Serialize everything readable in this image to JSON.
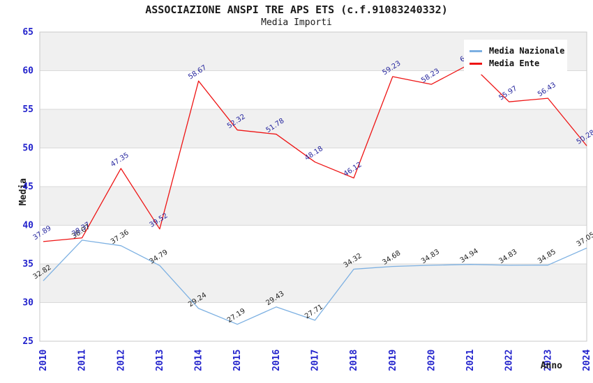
{
  "title": "ASSOCIAZIONE ANSPI TRE APS ETS (c.f.91083240332)",
  "subtitle": "Media Importi",
  "axes": {
    "y_label": "Media",
    "x_label": "Anno",
    "y_ticks": [
      65,
      60,
      55,
      50,
      45,
      40,
      35,
      30,
      25
    ],
    "tick_color": "#2222cc"
  },
  "legend": {
    "position": "top-right",
    "items": [
      {
        "label": "Media Nazionale",
        "color": "#7cb0e2"
      },
      {
        "label": "Media Ente",
        "color": "#ee1414"
      }
    ]
  },
  "chart_data": {
    "type": "line",
    "title": "ASSOCIAZIONE ANSPI TRE APS ETS (c.f.91083240332)",
    "subtitle": "Media Importi",
    "xlabel": "Anno",
    "ylabel": "Media",
    "ylim": [
      25,
      65
    ],
    "grid": true,
    "legend_position": "top-right",
    "band_colors": [
      "#f0f0f0",
      "#ffffff"
    ],
    "categories": [
      "2010",
      "2011",
      "2012",
      "2013",
      "2014",
      "2015",
      "2016",
      "2017",
      "2018",
      "2019",
      "2020",
      "2021",
      "2022",
      "2023",
      "2024"
    ],
    "series": [
      {
        "name": "Media Nazionale",
        "color": "#7cb0e2",
        "label_color": "#222222",
        "values": [
          32.82,
          38.07,
          37.36,
          34.79,
          29.24,
          27.19,
          29.43,
          27.71,
          34.32,
          34.68,
          34.83,
          34.94,
          34.83,
          34.85,
          37.05
        ],
        "labels": [
          "32.82",
          "38.07",
          "37.36",
          "34.79",
          "29.24",
          "27.19",
          "29.43",
          "27.71",
          "34.32",
          "34.68",
          "34.83",
          "34.94",
          "34.83",
          "34.85",
          "37.05"
        ]
      },
      {
        "name": "Media Ente",
        "color": "#ee1414",
        "label_color": "#26269e",
        "values": [
          37.89,
          38.37,
          47.35,
          39.52,
          58.67,
          52.32,
          51.78,
          48.18,
          46.12,
          59.23,
          58.23,
          60.89,
          55.97,
          56.43,
          50.28
        ],
        "labels": [
          "37.89",
          "38.37",
          "47.35",
          "39.52",
          "58.67",
          "52.32",
          "51.78",
          "48.18",
          "46.12",
          "59.23",
          "58.23",
          "60.89",
          "55.97",
          "56.43",
          "50.28"
        ]
      }
    ]
  }
}
